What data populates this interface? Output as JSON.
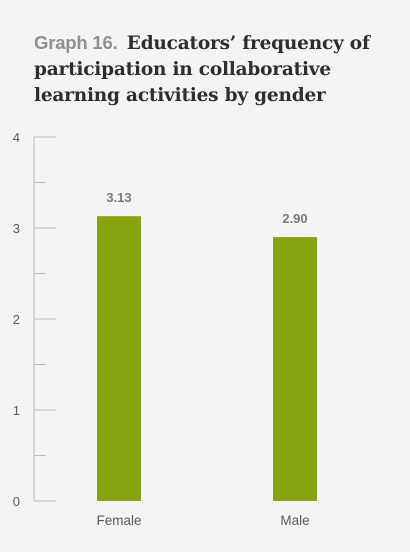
{
  "title_prefix": "Graph 16.",
  "title_text": "Educators’ frequency of participation in collaborative learning activities by gender",
  "colors": {
    "bar": "#86a30f",
    "axis": "#b9b9b9",
    "tick_label": "#5a5a5a",
    "data_label": "#7a7a7a",
    "background": "#f4f5f2"
  },
  "chart_data": {
    "type": "bar",
    "title": "Educators’ frequency of participation in collaborative learning activities by gender",
    "categories": [
      "Female",
      "Male"
    ],
    "values": [
      3.13,
      2.9
    ],
    "data_labels": [
      "3.13",
      "2.90"
    ],
    "xlabel": "",
    "ylabel": "",
    "ylim": [
      0,
      4
    ],
    "yticks": [
      0,
      1,
      2,
      3,
      4
    ],
    "yticks_minor": [
      0.5,
      1.5,
      2.5,
      3.5
    ],
    "grid": false,
    "legend": "none"
  }
}
